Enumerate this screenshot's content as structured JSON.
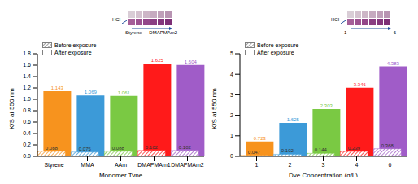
{
  "chart_data": [
    {
      "type": "bar",
      "categories": [
        "Styrene",
        "MMA",
        "AAm",
        "DMAPMAm1",
        "DMAPMAm2"
      ],
      "series": [
        {
          "name": "Before exposure",
          "color": "#808080",
          "values": [
            0.088,
            0.075,
            0.088,
            0.102,
            0.102
          ]
        },
        {
          "name": "After exposure",
          "color": "#ffffff",
          "values": [
            1.143,
            1.069,
            1.061,
            1.625,
            1.604
          ]
        }
      ],
      "colors": [
        "#f7931e",
        "#3c9ad8",
        "#7ac943",
        "#ff1a1a",
        "#a05cc8"
      ],
      "x_label": "Monomer Type",
      "y_label": "K/S at 550 nm",
      "ylim": [
        0,
        1.8
      ],
      "yticks": [
        {
          "value": 0,
          "label": "0.0"
        },
        0.2,
        0.4,
        0.6,
        0.8,
        {
          "value": 1,
          "label": "1.0"
        },
        1.2,
        1.4,
        1.6,
        1.8
      ],
      "data_labels": true,
      "legend": "upper left",
      "annotations": [
        "HCl",
        "Styrene",
        "DMAPMAm2"
      ]
    },
    {
      "type": "bar",
      "categories": [
        "1",
        "2",
        "3",
        "4",
        "6"
      ],
      "series": [
        {
          "name": "Before exposure",
          "color": "#808080",
          "values": [
            0.047,
            0.102,
            0.144,
            0.239,
            0.368
          ]
        },
        {
          "name": "After exposure",
          "color": "#ffffff",
          "values": [
            0.723,
            1.625,
            2.303,
            3.346,
            4.383
          ]
        }
      ],
      "colors": [
        "#f7931e",
        "#3c9ad8",
        "#7ac943",
        "#ff1a1a",
        "#a05cc8"
      ],
      "x_label": "Dye Concentration (g/L)",
      "y_label": "K/S at 550 nm",
      "ylim": [
        0,
        5
      ],
      "yticks": [
        0,
        1,
        2,
        3,
        4,
        5
      ],
      "data_labels": true,
      "legend": "upper left",
      "annotations": [
        "HCl",
        "1",
        "6"
      ]
    }
  ]
}
